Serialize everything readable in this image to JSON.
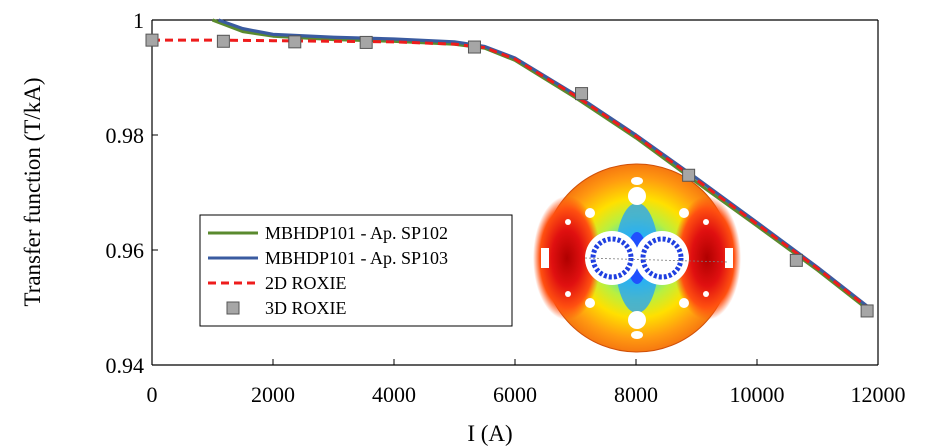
{
  "chart_data": {
    "type": "line",
    "title": "",
    "xlabel": "I (A)",
    "ylabel": "Transfer function (T/kA)",
    "xlim": [
      0,
      12000
    ],
    "ylim": [
      0.94,
      1.0
    ],
    "x_ticks": [
      "0",
      "2000",
      "4000",
      "6000",
      "8000",
      "10000",
      "12000"
    ],
    "y_ticks": [
      "0.94",
      "0.96",
      "0.98",
      "1"
    ],
    "grid": false,
    "legend_position": "lower-left",
    "series": [
      {
        "name": "MBHDP101 - Ap. SP102",
        "style": "line",
        "color": "#5a8a2e",
        "x": [
          1000,
          1500,
          2000,
          3000,
          4000,
          5000,
          5500,
          6000,
          7000,
          8000,
          9000,
          10000,
          11000,
          11850
        ],
        "y": [
          1.0,
          0.998,
          0.9972,
          0.9966,
          0.9963,
          0.9958,
          0.9951,
          0.993,
          0.9865,
          0.9795,
          0.9718,
          0.9642,
          0.9565,
          0.9495
        ]
      },
      {
        "name": "MBHDP101 - Ap. SP103",
        "style": "line",
        "color": "#3a5ba0",
        "x": [
          1100,
          1500,
          2000,
          3000,
          4000,
          5000,
          5500,
          6000,
          7000,
          8000,
          9000,
          10000,
          11000,
          11850
        ],
        "y": [
          1.0,
          0.9985,
          0.9975,
          0.997,
          0.9967,
          0.9962,
          0.9954,
          0.9934,
          0.987,
          0.98,
          0.9725,
          0.9648,
          0.957,
          0.95
        ]
      },
      {
        "name": "2D ROXIE",
        "style": "dashed",
        "color": "#ee1c1c",
        "x": [
          0,
          1000,
          2000,
          3000,
          4000,
          5000,
          5500,
          6000,
          7000,
          8000,
          9000,
          10000,
          11000,
          11850
        ],
        "y": [
          0.9965,
          0.9965,
          0.9964,
          0.9963,
          0.9962,
          0.9958,
          0.9952,
          0.9932,
          0.9868,
          0.9798,
          0.9722,
          0.9645,
          0.9568,
          0.9498
        ]
      },
      {
        "name": "3D ROXIE",
        "style": "markers",
        "color": "#a6a6a6",
        "x": [
          0,
          1180,
          2360,
          3540,
          5330,
          7100,
          8870,
          10650,
          11820
        ],
        "y": [
          0.9965,
          0.9963,
          0.9962,
          0.9961,
          0.9953,
          0.9872,
          0.973,
          0.9582,
          0.9494
        ]
      }
    ]
  }
}
